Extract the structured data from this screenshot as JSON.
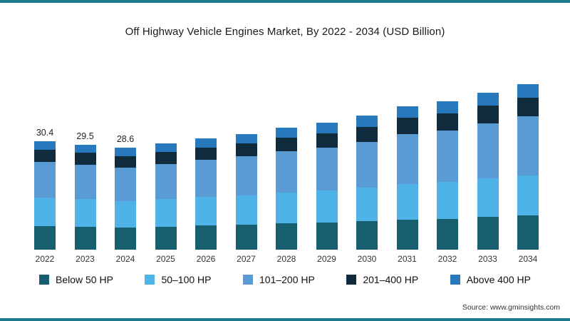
{
  "source": "Source: www.gminsights.com",
  "colors": {
    "frame_accent": "#1d7a8c",
    "background": "#ffffff"
  },
  "chart_data": {
    "type": "bar",
    "stacked": true,
    "title": "Off Highway Vehicle Engines Market, By 2022 - 2034 (USD Billion)",
    "xlabel": "",
    "ylabel": "",
    "ylim": [
      0,
      50
    ],
    "grid": false,
    "legend_position": "bottom",
    "categories": [
      "2022",
      "2023",
      "2024",
      "2025",
      "2026",
      "2027",
      "2028",
      "2029",
      "2030",
      "2031",
      "2032",
      "2033",
      "2034"
    ],
    "series": [
      {
        "name": "Below 50 HP",
        "color": "#175e6e",
        "values": [
          6.7,
          6.5,
          6.3,
          6.5,
          6.8,
          7.0,
          7.4,
          7.6,
          8.0,
          8.5,
          8.7,
          9.2,
          9.6
        ]
      },
      {
        "name": "50–100 HP",
        "color": "#4fb3e8",
        "values": [
          7.9,
          7.7,
          7.4,
          7.7,
          8.0,
          8.3,
          8.7,
          9.0,
          9.4,
          10.0,
          10.3,
          10.8,
          11.3
        ]
      },
      {
        "name": "101–200 HP",
        "color": "#5a9bd4",
        "values": [
          10.0,
          9.7,
          9.4,
          9.9,
          10.4,
          10.9,
          11.6,
          12.1,
          12.9,
          13.9,
          14.5,
          15.5,
          16.5
        ]
      },
      {
        "name": "201–400 HP",
        "color": "#0f2b3c",
        "values": [
          3.4,
          3.3,
          3.2,
          3.3,
          3.5,
          3.6,
          3.8,
          4.0,
          4.2,
          4.6,
          4.7,
          5.0,
          5.3
        ]
      },
      {
        "name": "Above 400 HP",
        "color": "#2878be",
        "values": [
          2.4,
          2.3,
          2.3,
          2.4,
          2.5,
          2.6,
          2.8,
          2.9,
          3.1,
          3.3,
          3.4,
          3.6,
          3.8
        ]
      }
    ],
    "totals": [
      30.4,
      29.5,
      28.6,
      29.8,
      31.2,
      32.4,
      34.3,
      35.6,
      37.6,
      40.3,
      41.6,
      44.1,
      46.5
    ],
    "value_labels": [
      "30.4",
      "29.5",
      "28.6",
      "",
      "",
      "",
      "",
      "",
      "",
      "",
      "",
      "",
      ""
    ]
  }
}
